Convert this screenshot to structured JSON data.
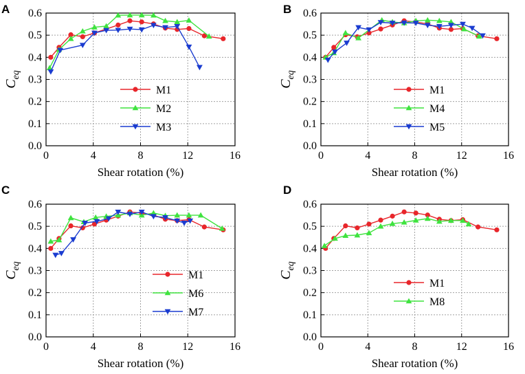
{
  "figure": {
    "background": "#ffffff",
    "grid_color": "#a0a0a0",
    "axis_color": "#000000"
  },
  "chart_data": [
    {
      "panel": "A",
      "type": "line",
      "xlabel": "Shear rotation (%)",
      "ylabel": "C",
      "ylabel_sub": "eq",
      "xlim": [
        0,
        16
      ],
      "ylim": [
        0,
        0.6
      ],
      "xticks": [
        0,
        4,
        8,
        12,
        16
      ],
      "xtick_labels": [
        "0",
        "4",
        "8",
        "12",
        "16"
      ],
      "yticks": [
        0,
        0.1,
        0.2,
        0.3,
        0.4,
        0.5,
        0.6
      ],
      "ytick_labels": [
        "0.0",
        "0.1",
        "0.2",
        "0.3",
        "0.4",
        "0.5",
        "0.6"
      ],
      "grid": true,
      "legend_position": "lower-left",
      "series": [
        {
          "name": "M1",
          "color": "#e8262b",
          "marker": "circle",
          "x": [
            0.4,
            1.1,
            2.1,
            3.1,
            4.1,
            5.1,
            6.1,
            7.1,
            8.1,
            9.1,
            10.1,
            11.1,
            12.1,
            13.4,
            15.0
          ],
          "y": [
            0.4,
            0.445,
            0.502,
            0.493,
            0.51,
            0.528,
            0.546,
            0.565,
            0.56,
            0.551,
            0.532,
            0.526,
            0.53,
            0.497,
            0.484
          ]
        },
        {
          "name": "M2",
          "color": "#3fe33f",
          "marker": "triangle-up",
          "x": [
            0.3,
            1.1,
            2.1,
            3.1,
            4.1,
            5.1,
            6.1,
            7.1,
            8.1,
            9.1,
            10.1,
            11.1,
            12.1,
            13.8
          ],
          "y": [
            0.352,
            0.435,
            0.484,
            0.518,
            0.536,
            0.541,
            0.59,
            0.591,
            0.591,
            0.59,
            0.565,
            0.56,
            0.567,
            0.495
          ]
        },
        {
          "name": "M3",
          "color": "#1a3cd0",
          "marker": "triangle-down",
          "x": [
            0.4,
            1.2,
            3.1,
            4.1,
            5.1,
            6.1,
            7.1,
            8.1,
            9.1,
            10.1,
            11.1,
            12.1,
            13.0
          ],
          "y": [
            0.335,
            0.432,
            0.455,
            0.51,
            0.522,
            0.523,
            0.528,
            0.525,
            0.545,
            0.535,
            0.54,
            0.447,
            0.355
          ]
        }
      ]
    },
    {
      "panel": "B",
      "type": "line",
      "xlabel": "Shear rotation (%)",
      "ylabel": "C",
      "ylabel_sub": "eq",
      "xlim": [
        0,
        16
      ],
      "ylim": [
        0,
        0.6
      ],
      "xticks": [
        0,
        4,
        8,
        12,
        16
      ],
      "xtick_labels": [
        "0",
        "4",
        "8",
        "12",
        "16"
      ],
      "yticks": [
        0,
        0.1,
        0.2,
        0.3,
        0.4,
        0.5,
        0.6
      ],
      "ytick_labels": [
        "0.0",
        "0.1",
        "0.2",
        "0.3",
        "0.4",
        "0.5",
        "0.6"
      ],
      "grid": true,
      "legend_position": "lower-center",
      "series": [
        {
          "name": "M1",
          "color": "#e8262b",
          "marker": "circle",
          "x": [
            0.4,
            1.1,
            2.1,
            3.1,
            4.1,
            5.1,
            6.1,
            7.1,
            8.1,
            9.1,
            10.1,
            11.1,
            12.1,
            13.4,
            15.0
          ],
          "y": [
            0.4,
            0.445,
            0.502,
            0.493,
            0.51,
            0.528,
            0.546,
            0.565,
            0.56,
            0.551,
            0.532,
            0.526,
            0.53,
            0.497,
            0.484
          ]
        },
        {
          "name": "M4",
          "color": "#3fe33f",
          "marker": "triangle-up",
          "x": [
            0.4,
            1.1,
            2.1,
            3.2,
            5.2,
            6.1,
            7.1,
            8.1,
            9.1,
            10.1,
            11.1,
            12.2,
            13.5
          ],
          "y": [
            0.4,
            0.42,
            0.51,
            0.487,
            0.568,
            0.56,
            0.555,
            0.565,
            0.568,
            0.565,
            0.56,
            0.528,
            0.495
          ]
        },
        {
          "name": "M5",
          "color": "#1a3cd0",
          "marker": "triangle-down",
          "x": [
            0.6,
            1.2,
            2.2,
            3.2,
            4.1,
            5.1,
            6.1,
            7.1,
            8.1,
            9.1,
            10.1,
            11.1,
            12.1,
            12.9,
            13.8
          ],
          "y": [
            0.388,
            0.425,
            0.465,
            0.535,
            0.525,
            0.558,
            0.555,
            0.556,
            0.555,
            0.545,
            0.54,
            0.545,
            0.55,
            0.532,
            0.498
          ]
        }
      ]
    },
    {
      "panel": "C",
      "type": "line",
      "xlabel": "Shear rotation (%)",
      "ylabel": "C",
      "ylabel_sub": "eq",
      "xlim": [
        0,
        16
      ],
      "ylim": [
        0,
        0.6
      ],
      "xticks": [
        0,
        4,
        8,
        12,
        16
      ],
      "xtick_labels": [
        "0",
        "4",
        "8",
        "12",
        "16"
      ],
      "yticks": [
        0,
        0.1,
        0.2,
        0.3,
        0.4,
        0.5,
        0.6
      ],
      "ytick_labels": [
        "0.0",
        "0.1",
        "0.2",
        "0.3",
        "0.4",
        "0.5",
        "0.6"
      ],
      "grid": true,
      "legend_position": "lower-right",
      "series": [
        {
          "name": "M1",
          "color": "#e8262b",
          "marker": "circle",
          "x": [
            0.4,
            1.1,
            2.1,
            3.1,
            4.1,
            5.1,
            6.1,
            7.1,
            8.1,
            9.1,
            10.1,
            11.1,
            12.1,
            13.4,
            15.0
          ],
          "y": [
            0.4,
            0.445,
            0.502,
            0.493,
            0.51,
            0.528,
            0.546,
            0.565,
            0.56,
            0.551,
            0.532,
            0.526,
            0.53,
            0.497,
            0.484
          ]
        },
        {
          "name": "M6",
          "color": "#3fe33f",
          "marker": "triangle-up",
          "x": [
            0.4,
            1.1,
            2.1,
            3.2,
            4.2,
            5.1,
            6.1,
            7.1,
            8.1,
            9.1,
            10.1,
            11.1,
            12.1,
            13.1,
            14.9
          ],
          "y": [
            0.432,
            0.438,
            0.538,
            0.52,
            0.54,
            0.545,
            0.55,
            0.56,
            0.55,
            0.56,
            0.548,
            0.55,
            0.55,
            0.55,
            0.49
          ]
        },
        {
          "name": "M7",
          "color": "#1a3cd0",
          "marker": "triangle-down",
          "x": [
            0.8,
            1.3,
            2.3,
            3.3,
            4.3,
            5.3,
            6.1,
            7.1,
            8.1,
            9.1,
            10.1,
            11.1,
            11.7,
            12.2
          ],
          "y": [
            0.37,
            0.378,
            0.44,
            0.515,
            0.522,
            0.535,
            0.565,
            0.555,
            0.565,
            0.545,
            0.54,
            0.525,
            0.515,
            0.525
          ]
        }
      ]
    },
    {
      "panel": "D",
      "type": "line",
      "xlabel": "Shear rotation (%)",
      "ylabel": "C",
      "ylabel_sub": "eq",
      "xlim": [
        0,
        16
      ],
      "ylim": [
        0,
        0.6
      ],
      "xticks": [
        0,
        4,
        8,
        12,
        16
      ],
      "xtick_labels": [
        "0",
        "4",
        "8",
        "12",
        "16"
      ],
      "yticks": [
        0,
        0.1,
        0.2,
        0.3,
        0.4,
        0.5,
        0.6
      ],
      "ytick_labels": [
        "0.0",
        "0.1",
        "0.2",
        "0.3",
        "0.4",
        "0.5",
        "0.6"
      ],
      "grid": true,
      "legend_position": "lower-center",
      "series": [
        {
          "name": "M1",
          "color": "#e8262b",
          "marker": "circle",
          "x": [
            0.4,
            1.1,
            2.1,
            3.1,
            4.1,
            5.1,
            6.1,
            7.1,
            8.1,
            9.1,
            10.1,
            11.1,
            12.1,
            13.4,
            15.0
          ],
          "y": [
            0.4,
            0.445,
            0.502,
            0.493,
            0.51,
            0.528,
            0.546,
            0.565,
            0.56,
            0.551,
            0.532,
            0.526,
            0.53,
            0.497,
            0.484
          ]
        },
        {
          "name": "M8",
          "color": "#3fe33f",
          "marker": "triangle-up",
          "x": [
            0.3,
            1.2,
            2.1,
            3.1,
            4.1,
            5.1,
            6.1,
            7.1,
            8.1,
            9.1,
            10.1,
            11.1,
            12.1,
            12.6
          ],
          "y": [
            0.412,
            0.445,
            0.458,
            0.46,
            0.47,
            0.5,
            0.512,
            0.518,
            0.527,
            0.535,
            0.522,
            0.526,
            0.526,
            0.51
          ]
        }
      ]
    }
  ]
}
